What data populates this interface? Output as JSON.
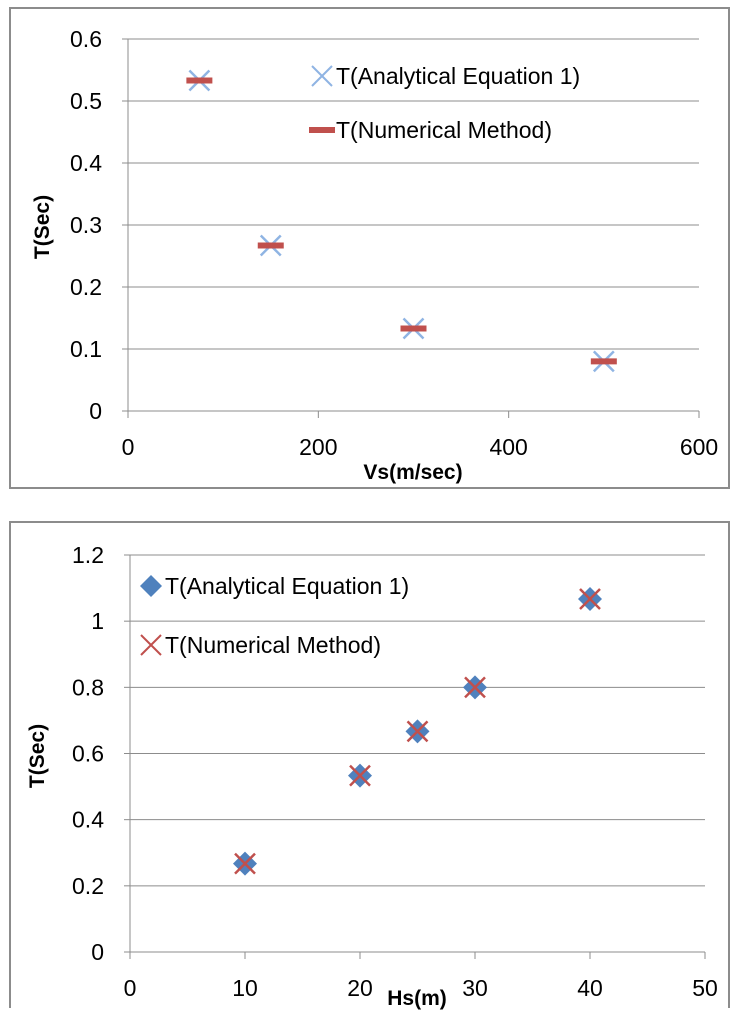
{
  "colors": {
    "blue": "#4f81bd",
    "lightblue": "#8fb4e3",
    "red": "#c0504d",
    "grid": "#8c8c8c",
    "axis": "#8c8c8c"
  },
  "chart_data": [
    {
      "type": "scatter",
      "xlabel": "Vs(m/sec)",
      "ylabel": "T(Sec)",
      "xlim": [
        0,
        600
      ],
      "ylim": [
        0,
        0.6
      ],
      "x_ticks": [
        "0",
        "200",
        "400",
        "600"
      ],
      "y_ticks": [
        "0",
        "0.1",
        "0.2",
        "0.3",
        "0.4",
        "0.5",
        "0.6"
      ],
      "grid": "horizontal",
      "legend_position": "top-right",
      "series": [
        {
          "name": "T(Analytical Equation 1)",
          "marker": "x",
          "color": "#8fb4e3",
          "x": [
            75,
            150,
            300,
            500
          ],
          "y": [
            0.533,
            0.267,
            0.133,
            0.08
          ]
        },
        {
          "name": "T(Numerical Method)",
          "marker": "dash",
          "color": "#c0504d",
          "x": [
            75,
            150,
            300,
            500
          ],
          "y": [
            0.533,
            0.267,
            0.133,
            0.08
          ]
        }
      ]
    },
    {
      "type": "scatter",
      "xlabel": "Hs(m)",
      "ylabel": "T(Sec)",
      "xlim": [
        0,
        50
      ],
      "ylim": [
        0,
        1.2
      ],
      "x_ticks": [
        "0",
        "10",
        "20",
        "30",
        "40",
        "50"
      ],
      "y_ticks": [
        "0",
        "0.2",
        "0.4",
        "0.6",
        "0.8",
        "1",
        "1.2"
      ],
      "grid": "horizontal",
      "legend_position": "top-left",
      "series": [
        {
          "name": "T(Analytical Equation 1)",
          "marker": "diamond",
          "color": "#4f81bd",
          "x": [
            10,
            20,
            25,
            30,
            40
          ],
          "y": [
            0.267,
            0.533,
            0.667,
            0.8,
            1.067
          ]
        },
        {
          "name": "T(Numerical Method)",
          "marker": "x",
          "color": "#c0504d",
          "x": [
            10,
            20,
            25,
            30,
            40
          ],
          "y": [
            0.267,
            0.533,
            0.667,
            0.8,
            1.067
          ]
        }
      ]
    }
  ]
}
